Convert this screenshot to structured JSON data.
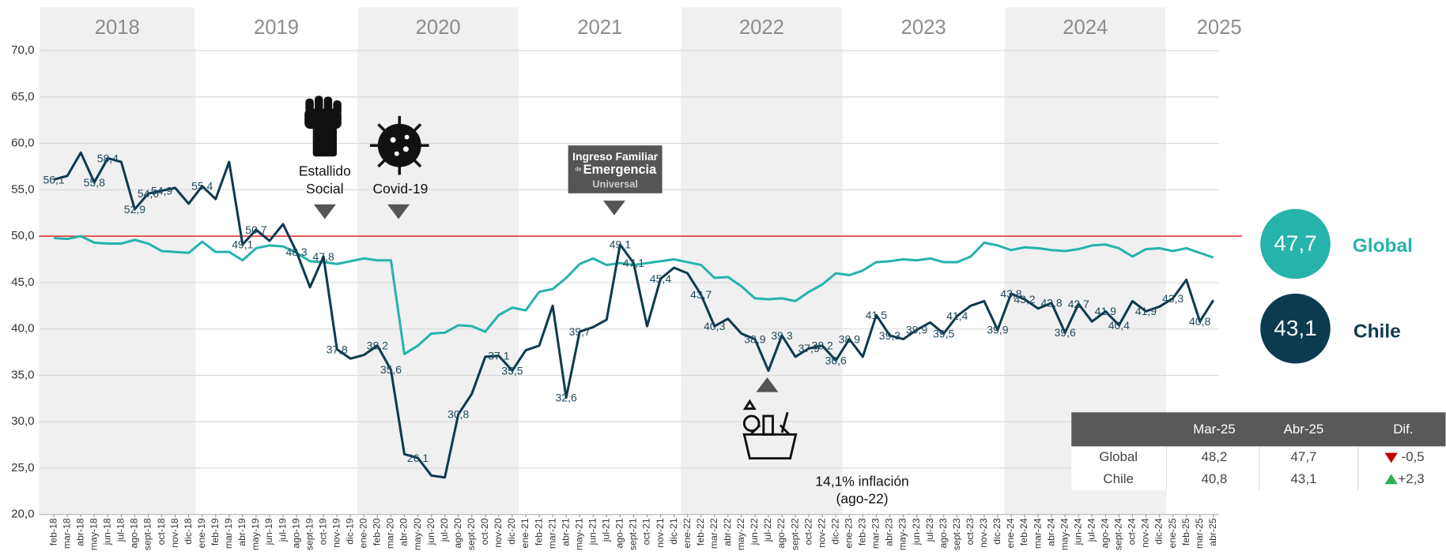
{
  "chart_data": {
    "type": "line",
    "years": [
      "2018",
      "2019",
      "2020",
      "2021",
      "2022",
      "2023",
      "2024",
      "2025"
    ],
    "categories": [
      "feb-18",
      "mar-18",
      "abr-18",
      "may-18",
      "jun-18",
      "jul-18",
      "ago-18",
      "sept-18",
      "oct-18",
      "nov-18",
      "dic-18",
      "ene-19",
      "feb-19",
      "mar-19",
      "abr-19",
      "may-19",
      "jun-19",
      "jul-19",
      "ago-19",
      "sept-19",
      "oct-19",
      "nov-19",
      "dic-19",
      "ene-20",
      "feb-20",
      "mar-20",
      "abr-20",
      "may-20",
      "jun-20",
      "jul-20",
      "ago-20",
      "sept-20",
      "oct-20",
      "nov-20",
      "dic-20",
      "ene-21",
      "feb-21",
      "mar-21",
      "abr-21",
      "may-21",
      "jun-21",
      "jul-21",
      "ago-21",
      "sept-21",
      "oct-21",
      "nov-21",
      "dic-21",
      "ene-22",
      "feb-22",
      "mar-22",
      "abr-22",
      "may-22",
      "jun-22",
      "jul-22",
      "ago-22",
      "sept-22",
      "oct-22",
      "nov-22",
      "dic-22",
      "ene-23",
      "feb-23",
      "mar-23",
      "abr-23",
      "may-23",
      "jun-23",
      "jul-23",
      "ago-23",
      "sept-23",
      "oct-23",
      "nov-23",
      "dic-23",
      "ene-24",
      "feb-24",
      "mar-24",
      "abr-24",
      "may-24",
      "jun-24",
      "jul-24",
      "ago-24",
      "sept-24",
      "oct-24",
      "nov-24",
      "dic-24",
      "ene-25",
      "feb-25",
      "mar-25",
      "abr-25"
    ],
    "series": [
      {
        "name": "Global",
        "color": "#26b3ab",
        "latest_label": "47,7",
        "values": [
          49.8,
          49.7,
          50.0,
          49.3,
          49.2,
          49.2,
          49.6,
          49.2,
          48.4,
          48.3,
          48.2,
          49.4,
          48.3,
          48.3,
          47.4,
          48.7,
          49.0,
          48.9,
          48.2,
          47.3,
          47.2,
          47.0,
          47.3,
          47.6,
          47.4,
          47.4,
          37.3,
          38.2,
          39.5,
          39.6,
          40.4,
          40.3,
          39.7,
          41.5,
          42.3,
          42.0,
          44.0,
          44.3,
          45.5,
          47.0,
          47.6,
          46.9,
          47.1,
          46.9,
          47.1,
          47.3,
          47.5,
          47.2,
          46.9,
          45.5,
          45.6,
          44.6,
          43.3,
          43.2,
          43.3,
          43.0,
          44.0,
          44.8,
          46.0,
          45.8,
          46.3,
          47.2,
          47.3,
          47.5,
          47.4,
          47.6,
          47.2,
          47.2,
          47.8,
          49.3,
          49.0,
          48.5,
          48.8,
          48.7,
          48.5,
          48.4,
          48.6,
          49.0,
          49.1,
          48.7,
          47.8,
          48.6,
          48.7,
          48.4,
          48.7,
          48.2,
          47.7
        ]
      },
      {
        "name": "Chile",
        "color": "#0e3a4f",
        "latest_label": "43,1",
        "values": [
          56.1,
          56.5,
          59.0,
          55.8,
          58.4,
          58.0,
          52.9,
          54.6,
          54.9,
          55.2,
          53.5,
          55.4,
          54.0,
          58.0,
          49.1,
          50.7,
          49.5,
          51.3,
          48.3,
          44.5,
          47.8,
          37.8,
          36.8,
          37.2,
          38.2,
          35.6,
          26.5,
          26.1,
          24.2,
          24.0,
          30.8,
          33.0,
          37.0,
          37.1,
          35.5,
          37.7,
          38.2,
          42.5,
          32.6,
          39.7,
          40.2,
          41.0,
          49.1,
          47.1,
          40.3,
          45.4,
          46.6,
          46.0,
          43.7,
          40.3,
          41.1,
          39.5,
          38.9,
          35.5,
          39.3,
          37.0,
          37.9,
          38.2,
          36.6,
          38.9,
          37.0,
          41.5,
          39.3,
          38.9,
          39.9,
          40.7,
          39.5,
          41.4,
          42.5,
          43.0,
          39.9,
          43.8,
          43.2,
          42.2,
          42.8,
          39.6,
          42.7,
          40.8,
          41.9,
          40.4,
          43.0,
          41.9,
          42.4,
          43.3,
          45.3,
          40.8,
          43.1
        ],
        "value_labels": [
          "56,1",
          null,
          null,
          "55,8",
          "58,4",
          null,
          "52,9",
          "54,6",
          "54,9",
          null,
          null,
          "55,4",
          null,
          null,
          "49,1",
          "50,7",
          null,
          null,
          "48,3",
          null,
          "47,8",
          "37,8",
          null,
          null,
          "38,2",
          "35,6",
          null,
          "26,1",
          null,
          null,
          "30,8",
          null,
          null,
          "37,1",
          "35,5",
          null,
          null,
          null,
          "32,6",
          "39,7",
          null,
          null,
          "49,1",
          "47,1",
          null,
          "45,4",
          null,
          null,
          "43,7",
          "40,3",
          null,
          null,
          "38,9",
          null,
          "39,3",
          null,
          "37,9",
          "38,2",
          "36,6",
          "38,9",
          null,
          "41,5",
          "39,3",
          null,
          "39,9",
          null,
          "39,5",
          "41,4",
          null,
          null,
          "39,9",
          "43,8",
          "43,2",
          null,
          "42,8",
          "39,6",
          "42,7",
          null,
          "41,9",
          "40,4",
          null,
          "41,9",
          null,
          "43,3",
          null,
          "40,8",
          null
        ]
      }
    ],
    "ylim": [
      20,
      70
    ],
    "yticks": [
      {
        "value": 20,
        "label": "20,0"
      },
      {
        "value": 25,
        "label": "25,0"
      },
      {
        "value": 30,
        "label": "30,0"
      },
      {
        "value": 35,
        "label": "35,0"
      },
      {
        "value": 40,
        "label": "40,0"
      },
      {
        "value": 45,
        "label": "45,0"
      },
      {
        "value": 50,
        "label": "50,0"
      },
      {
        "value": 55,
        "label": "55,0"
      },
      {
        "value": 60,
        "label": "60,0"
      },
      {
        "value": 65,
        "label": "65,0"
      },
      {
        "value": 70,
        "label": "70,0"
      }
    ],
    "grid": true,
    "reference_line": {
      "value": 50,
      "color": "#e8262b"
    },
    "annotations": {
      "estallido": [
        "Estallido",
        "Social"
      ],
      "covid": "Covid-19",
      "ife": [
        "Ingreso Familiar",
        "de",
        "Emergencia",
        "Universal"
      ],
      "inflation": [
        "14,1% inflación",
        "(ago-22)"
      ]
    },
    "table": {
      "columns": [
        "Mar-25",
        "Abr-25",
        "Dif."
      ],
      "rows": [
        {
          "name": "Global",
          "cells": [
            "48,2",
            "47,7",
            "-0,5"
          ],
          "trend": "down"
        },
        {
          "name": "Chile",
          "cells": [
            "40,8",
            "43,1",
            "+2,3"
          ],
          "trend": "up"
        }
      ]
    }
  }
}
